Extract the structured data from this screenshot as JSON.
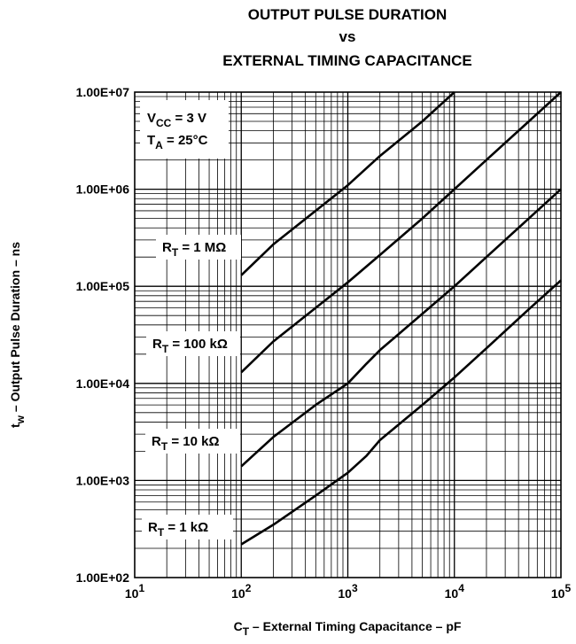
{
  "chart_data": {
    "type": "line",
    "title": [
      "OUTPUT PULSE DURATION",
      "vs",
      "EXTERNAL TIMING CAPACITANCE"
    ],
    "x_scale": "log",
    "y_scale": "log",
    "xlim": [
      10,
      100000
    ],
    "ylim": [
      100,
      10000000
    ],
    "grid": true,
    "xlabel": {
      "main": "C",
      "sub": "T",
      "rest": " – External Timing Capacitance – pF"
    },
    "ylabel": {
      "main": "t",
      "sub": "w",
      "rest": " – Output Pulse Duration – ns"
    },
    "x_ticks": [
      {
        "value": 10,
        "base": "10",
        "exp": "1"
      },
      {
        "value": 100,
        "base": "10",
        "exp": "2"
      },
      {
        "value": 1000,
        "base": "10",
        "exp": "3"
      },
      {
        "value": 10000,
        "base": "10",
        "exp": "4"
      },
      {
        "value": 100000,
        "base": "10",
        "exp": "5"
      }
    ],
    "y_ticks": [
      {
        "value": 100,
        "label": "1.00E+02"
      },
      {
        "value": 1000,
        "label": "1.00E+03"
      },
      {
        "value": 10000,
        "label": "1.00E+04"
      },
      {
        "value": 100000,
        "label": "1.00E+05"
      },
      {
        "value": 1000000,
        "label": "1.00E+06"
      },
      {
        "value": 10000000,
        "label": "1.00E+07"
      }
    ],
    "conditions": [
      {
        "main": "V",
        "sub": "CC",
        "rest": " = 3 V"
      },
      {
        "main": "T",
        "sub": "A",
        "rest": " = 25°C"
      }
    ],
    "series": [
      {
        "name": "R_T = 1 MΩ",
        "label": {
          "main": "R",
          "sub": "T",
          "rest": " = 1 MΩ"
        },
        "points": [
          [
            100,
            130000
          ],
          [
            200,
            270000
          ],
          [
            500,
            600000
          ],
          [
            1000,
            1100000
          ],
          [
            2000,
            2200000
          ],
          [
            5000,
            5000000
          ],
          [
            10000,
            10000000
          ]
        ]
      },
      {
        "name": "R_T = 100 kΩ",
        "label": {
          "main": "R",
          "sub": "T",
          "rest": " = 100 kΩ"
        },
        "points": [
          [
            100,
            13000
          ],
          [
            200,
            27000
          ],
          [
            500,
            60000
          ],
          [
            1000,
            110000
          ],
          [
            2000,
            210000
          ],
          [
            5000,
            500000
          ],
          [
            10000,
            1000000
          ],
          [
            20000,
            2000000
          ],
          [
            50000,
            5000000
          ],
          [
            100000,
            10000000
          ]
        ]
      },
      {
        "name": "R_T = 10 kΩ",
        "label": {
          "main": "R",
          "sub": "T",
          "rest": " = 10 kΩ"
        },
        "points": [
          [
            100,
            1400
          ],
          [
            200,
            2800
          ],
          [
            500,
            6000
          ],
          [
            1000,
            10000
          ],
          [
            1500,
            16000
          ],
          [
            2000,
            22000
          ],
          [
            5000,
            52000
          ],
          [
            10000,
            100000
          ],
          [
            20000,
            200000
          ],
          [
            50000,
            500000
          ],
          [
            100000,
            1000000
          ]
        ]
      },
      {
        "name": "R_T = 1 kΩ",
        "label": {
          "main": "R",
          "sub": "T",
          "rest": " = 1 kΩ"
        },
        "points": [
          [
            100,
            220
          ],
          [
            200,
            350
          ],
          [
            500,
            700
          ],
          [
            1000,
            1200
          ],
          [
            1500,
            1800
          ],
          [
            2000,
            2600
          ],
          [
            5000,
            6000
          ],
          [
            10000,
            11500
          ],
          [
            20000,
            23000
          ],
          [
            50000,
            58000
          ],
          [
            100000,
            115000
          ]
        ]
      }
    ]
  }
}
